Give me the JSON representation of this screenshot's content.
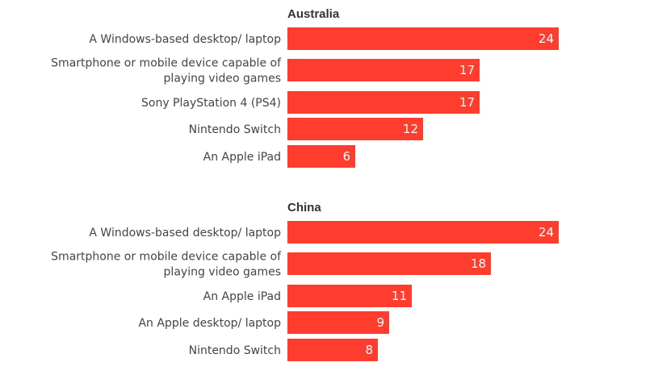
{
  "chart_data": [
    {
      "type": "bar",
      "orientation": "horizontal",
      "title": "Australia",
      "categories": [
        "A Windows-based desktop/ laptop",
        "Smartphone or mobile device capable of playing video games",
        "Sony PlayStation 4 (PS4)",
        "Nintendo Switch",
        "An Apple iPad"
      ],
      "values": [
        24,
        17,
        17,
        12,
        6
      ],
      "xlim": [
        0,
        25
      ],
      "grid": false,
      "bar_color": "#ff3d2e"
    },
    {
      "type": "bar",
      "orientation": "horizontal",
      "title": "China",
      "categories": [
        "A Windows-based desktop/ laptop",
        "Smartphone or mobile device capable of playing video games",
        "An Apple iPad",
        "An Apple desktop/ laptop",
        "Nintendo Switch"
      ],
      "values": [
        24,
        18,
        11,
        9,
        8
      ],
      "xlim": [
        0,
        25
      ],
      "grid": false,
      "bar_color": "#ff3d2e"
    }
  ]
}
